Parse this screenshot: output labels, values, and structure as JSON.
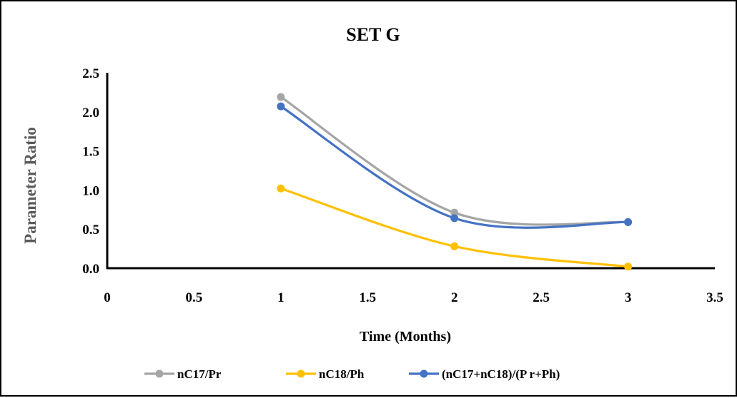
{
  "chart_data": {
    "type": "line",
    "title": "SET G",
    "xlabel": "Time  (Months)",
    "ylabel": "Parameter Ratio",
    "xlim": [
      0,
      3.5
    ],
    "ylim": [
      0,
      2.5
    ],
    "x_ticks": [
      "0",
      "0.5",
      "1",
      "1.5",
      "2",
      "2.5",
      "3",
      "3.5"
    ],
    "y_ticks": [
      "0.0",
      "0.5",
      "1.0",
      "1.5",
      "2.0",
      "2.5"
    ],
    "x": [
      1,
      2,
      3
    ],
    "series": [
      {
        "name": "nC17/Pr",
        "color": "#a5a5a5",
        "values": [
          2.19,
          0.71,
          0.59
        ]
      },
      {
        "name": "nC18/Ph",
        "color": "#ffc000",
        "values": [
          1.02,
          0.28,
          0.02
        ]
      },
      {
        "name": "(nC17+nC18)/(P r+Ph)",
        "color": "#4472c4",
        "values": [
          2.07,
          0.64,
          0.59
        ]
      }
    ],
    "legend_position": "bottom",
    "grid": false
  }
}
